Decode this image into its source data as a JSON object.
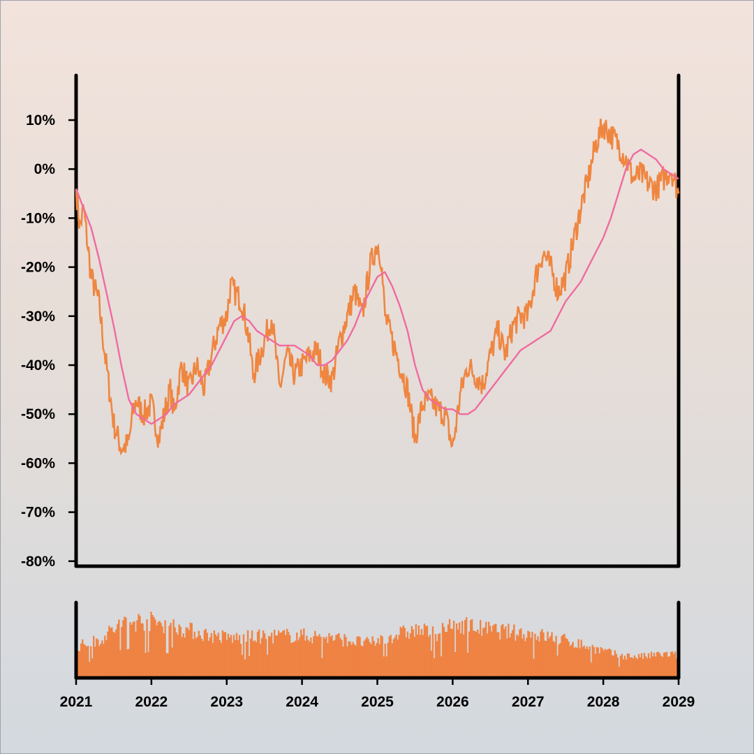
{
  "chart_data": {
    "type": "line",
    "title": "",
    "xlabel": "",
    "ylabel": "",
    "x_ticks": [
      "2021",
      "2022",
      "2023",
      "2024",
      "2025",
      "2026",
      "2027",
      "2028",
      "2029"
    ],
    "x_range": [
      2021,
      2029
    ],
    "y_ticks": [
      "10%",
      "0%",
      "-10%",
      "-20%",
      "-30%",
      "-40%",
      "-50%",
      "-60%",
      "-70%",
      "-80%"
    ],
    "ylim": [
      -80,
      10
    ],
    "grid": false,
    "legend": "none",
    "colors": {
      "price": "#ef8640",
      "average": "#f06aa0",
      "volume": "#ef8343",
      "axis": "#000000"
    },
    "series": [
      {
        "role": "price",
        "x": [
          2021.0,
          2021.05,
          2021.1,
          2021.2,
          2021.3,
          2021.4,
          2021.5,
          2021.6,
          2021.7,
          2021.75,
          2021.8,
          2021.85,
          2021.9,
          2022.0,
          2022.1,
          2022.2,
          2022.25,
          2022.3,
          2022.4,
          2022.5,
          2022.6,
          2022.7,
          2022.8,
          2022.9,
          2023.0,
          2023.05,
          2023.1,
          2023.2,
          2023.3,
          2023.35,
          2023.4,
          2023.5,
          2023.6,
          2023.7,
          2023.8,
          2023.9,
          2024.0,
          2024.1,
          2024.2,
          2024.3,
          2024.4,
          2024.5,
          2024.6,
          2024.7,
          2024.8,
          2024.9,
          2025.0,
          2025.05,
          2025.1,
          2025.2,
          2025.3,
          2025.4,
          2025.5,
          2025.6,
          2025.7,
          2025.8,
          2025.9,
          2026.0,
          2026.1,
          2026.2,
          2026.3,
          2026.4,
          2026.5,
          2026.6,
          2026.7,
          2026.8,
          2026.9,
          2027.0,
          2027.1,
          2027.2,
          2027.3,
          2027.4,
          2027.5,
          2027.6,
          2027.7,
          2027.8,
          2027.9,
          2028.0,
          2028.1,
          2028.2,
          2028.3,
          2028.4,
          2028.5,
          2028.6,
          2028.7,
          2028.8,
          2028.9,
          2029.0
        ],
        "y": [
          -4,
          -12,
          -8,
          -22,
          -27,
          -40,
          -52,
          -57,
          -56,
          -50,
          -47,
          -49,
          -50,
          -48,
          -55,
          -48,
          -45,
          -50,
          -40,
          -45,
          -40,
          -45,
          -38,
          -32,
          -30,
          -24,
          -25,
          -27,
          -35,
          -42,
          -40,
          -35,
          -30,
          -45,
          -38,
          -42,
          -40,
          -38,
          -37,
          -42,
          -43,
          -35,
          -30,
          -25,
          -30,
          -20,
          -15,
          -18,
          -30,
          -35,
          -40,
          -45,
          -55,
          -48,
          -47,
          -49,
          -50,
          -57,
          -46,
          -40,
          -42,
          -44,
          -38,
          -33,
          -38,
          -32,
          -30,
          -30,
          -22,
          -17,
          -20,
          -25,
          -22,
          -15,
          -8,
          -2,
          5,
          9,
          7,
          5,
          2,
          -2,
          -1,
          -3,
          -4,
          -2,
          0,
          -5
        ]
      },
      {
        "role": "average",
        "x": [
          2021.0,
          2021.1,
          2021.2,
          2021.3,
          2021.4,
          2021.5,
          2021.6,
          2021.7,
          2021.8,
          2021.9,
          2022.0,
          2022.1,
          2022.2,
          2022.3,
          2022.4,
          2022.5,
          2022.6,
          2022.7,
          2022.8,
          2022.9,
          2023.0,
          2023.1,
          2023.2,
          2023.3,
          2023.4,
          2023.5,
          2023.6,
          2023.7,
          2023.8,
          2023.9,
          2024.0,
          2024.1,
          2024.2,
          2024.3,
          2024.4,
          2024.5,
          2024.6,
          2024.7,
          2024.8,
          2024.9,
          2025.0,
          2025.1,
          2025.2,
          2025.3,
          2025.4,
          2025.5,
          2025.6,
          2025.7,
          2025.8,
          2025.9,
          2026.0,
          2026.1,
          2026.2,
          2026.3,
          2026.4,
          2026.5,
          2026.6,
          2026.7,
          2026.8,
          2026.9,
          2027.0,
          2027.1,
          2027.2,
          2027.3,
          2027.4,
          2027.5,
          2027.6,
          2027.7,
          2027.8,
          2027.9,
          2028.0,
          2028.1,
          2028.2,
          2028.3,
          2028.4,
          2028.5,
          2028.6,
          2028.7,
          2028.8,
          2028.9,
          2029.0
        ],
        "y": [
          -4,
          -8,
          -12,
          -18,
          -25,
          -32,
          -40,
          -47,
          -50,
          -51,
          -52,
          -51,
          -50,
          -48,
          -47,
          -46,
          -44,
          -42,
          -40,
          -37,
          -34,
          -31,
          -30,
          -31,
          -33,
          -34,
          -35,
          -36,
          -36,
          -36,
          -37,
          -38,
          -40,
          -40,
          -39,
          -37,
          -35,
          -32,
          -28,
          -25,
          -22,
          -21,
          -24,
          -28,
          -33,
          -40,
          -45,
          -47,
          -48,
          -49,
          -49,
          -50,
          -50,
          -49,
          -47,
          -45,
          -43,
          -41,
          -39,
          -37,
          -36,
          -35,
          -34,
          -33,
          -30,
          -27,
          -25,
          -23,
          -20,
          -17,
          -14,
          -10,
          -5,
          0,
          3,
          4,
          3,
          2,
          0,
          -1,
          -2
        ]
      }
    ],
    "volume": {
      "role": "volume",
      "x_range": [
        2021,
        2029
      ],
      "envelope_x": [
        2021.0,
        2021.3,
        2021.6,
        2021.9,
        2022.2,
        2022.5,
        2022.8,
        2023.1,
        2023.4,
        2023.7,
        2024.0,
        2024.3,
        2024.6,
        2024.9,
        2025.2,
        2025.5,
        2025.8,
        2026.1,
        2026.4,
        2026.7,
        2027.0,
        2027.3,
        2027.6,
        2027.9,
        2028.2,
        2028.5,
        2028.8,
        2029.0
      ],
      "envelope_y": [
        0.45,
        0.55,
        0.8,
        0.85,
        0.8,
        0.7,
        0.62,
        0.58,
        0.6,
        0.62,
        0.62,
        0.6,
        0.55,
        0.5,
        0.62,
        0.7,
        0.66,
        0.8,
        0.72,
        0.68,
        0.65,
        0.6,
        0.52,
        0.42,
        0.32,
        0.3,
        0.34,
        0.32
      ]
    }
  }
}
